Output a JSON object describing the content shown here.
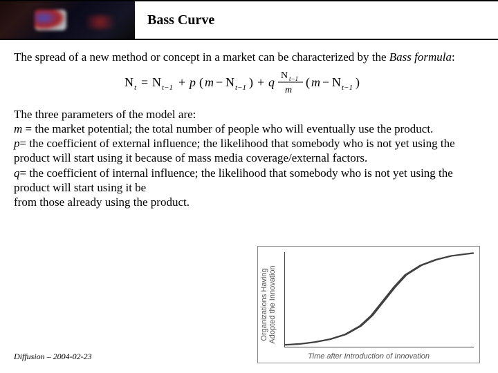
{
  "header": {
    "title": "Bass Curve"
  },
  "intro": {
    "line1": "The spread of a new method or concept in a market can be characterized by the ",
    "line2_italic": "Bass formula",
    "line2_tail": ":"
  },
  "formula": {
    "img_alt": "N_t = N_{t-1} + p (m - N_{t-1}) + q (N_{t-1}/m)(m - N_{t-1})"
  },
  "params": {
    "lead": "The three parameters of the model are:",
    "m_var": "m",
    "m_text": " = the market potential; the total number of people who will eventually use the product.",
    "p_var": "p",
    "p_text": "= the coefficient of external influence; the likelihood that somebody who is not yet using the product will start using it because of mass media coverage/external factors.",
    "q_var": "q",
    "q_text1": "= the coefficient of internal influence; the likelihood that somebody who is not yet using the product will start using it be",
    "q_text2": "from those already using the product."
  },
  "chart": {
    "type": "line",
    "ylabel": "Organizations Having\nAdopted the Innovation",
    "xlabel": "Time after Introduction of Innovation",
    "line_color": "#404040",
    "line_width": 2.2,
    "axis_color": "#444444",
    "background_color": "#ffffff",
    "xlim": [
      0,
      100
    ],
    "ylim": [
      0,
      100
    ],
    "points": [
      [
        0,
        2
      ],
      [
        8,
        3
      ],
      [
        16,
        5
      ],
      [
        24,
        8
      ],
      [
        32,
        13
      ],
      [
        40,
        22
      ],
      [
        46,
        33
      ],
      [
        52,
        48
      ],
      [
        58,
        63
      ],
      [
        64,
        76
      ],
      [
        72,
        86
      ],
      [
        80,
        92
      ],
      [
        88,
        96
      ],
      [
        96,
        98
      ],
      [
        100,
        99
      ]
    ]
  },
  "footer": {
    "text": "Diffusion – 2004-02-23"
  },
  "colors": {
    "text": "#000000",
    "bg": "#ffffff"
  }
}
